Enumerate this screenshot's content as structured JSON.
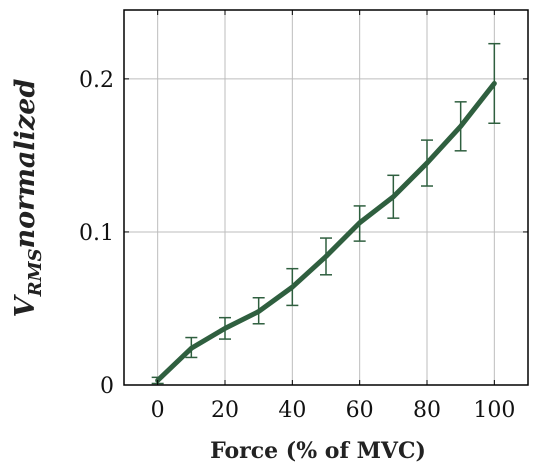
{
  "chart_data": {
    "type": "line",
    "xlabel": "Force (% of MVC)",
    "ylabel_main": "V",
    "ylabel_subscript": "RMS",
    "ylabel_rest": "normalized",
    "xlim": [
      -10,
      110
    ],
    "ylim": [
      0,
      0.245
    ],
    "x_ticks": [
      0,
      20,
      40,
      60,
      80,
      100
    ],
    "x_tick_labels": [
      "0",
      "20",
      "40",
      "60",
      "80",
      "100"
    ],
    "y_ticks": [
      0,
      0.1,
      0.2
    ],
    "y_tick_labels": [
      "0",
      "0.1",
      "0.2"
    ],
    "grid": true,
    "series": [
      {
        "x": [
          0,
          10,
          20,
          30,
          40,
          50,
          60,
          70,
          80,
          90,
          100
        ],
        "y": [
          0.003,
          0.024,
          0.037,
          0.048,
          0.064,
          0.084,
          0.106,
          0.123,
          0.145,
          0.169,
          0.197
        ],
        "err_low": [
          0.001,
          0.018,
          0.03,
          0.04,
          0.052,
          0.072,
          0.094,
          0.109,
          0.13,
          0.153,
          0.171
        ],
        "err_high": [
          0.005,
          0.031,
          0.044,
          0.057,
          0.076,
          0.096,
          0.117,
          0.137,
          0.16,
          0.185,
          0.223
        ],
        "color": "#2f5f3f"
      }
    ]
  }
}
